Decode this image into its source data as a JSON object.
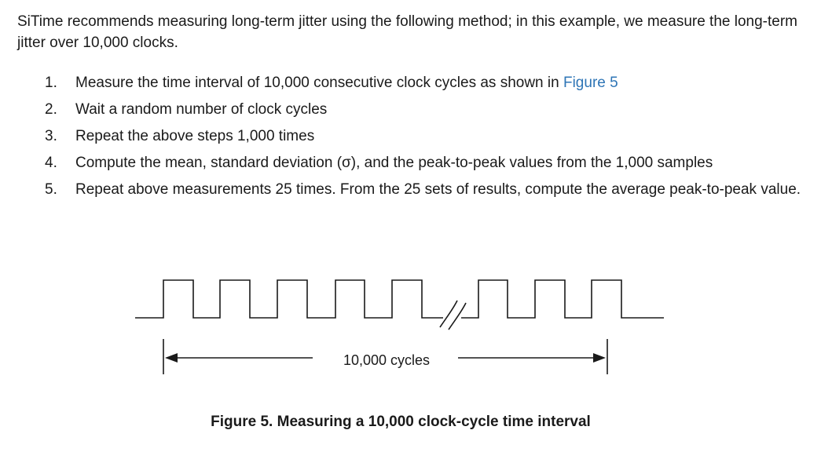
{
  "intro": "SiTime recommends measuring long-term jitter using the following method; in this example, we measure the long-term jitter over 10,000 clocks.",
  "steps": [
    {
      "num": "1.",
      "text": "Measure the time interval of 10,000 consecutive clock cycles as shown in ",
      "link": "Figure 5"
    },
    {
      "num": "2.",
      "text": "Wait a random number of clock cycles"
    },
    {
      "num": "3.",
      "text": "Repeat the above steps 1,000 times"
    },
    {
      "num": "4.",
      "text": "Compute the mean, standard deviation (σ), and the peak-to-peak values from the 1,000 samples"
    },
    {
      "num": "5.",
      "text": "Repeat above measurements 25 times.  From the 25 sets of results, compute the average peak-to-peak value."
    }
  ],
  "figure": {
    "label": "10,000 cycles",
    "caption": "Figure 5. Measuring a 10,000 clock-cycle time interval"
  }
}
